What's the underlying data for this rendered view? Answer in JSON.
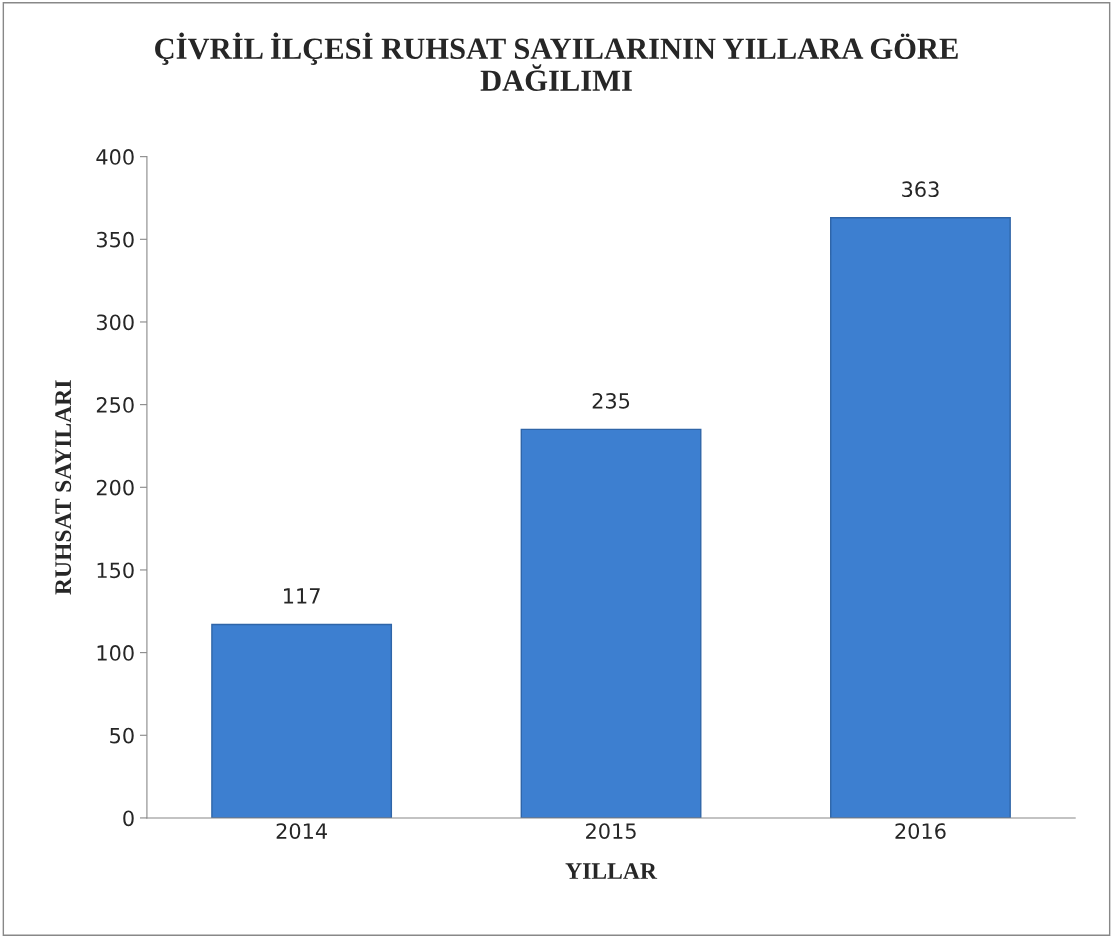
{
  "chart_data": {
    "type": "bar",
    "title": "ÇİVRİL İLÇESİ RUHSAT SAYILARININ YILLARA GÖRE\nDAĞILIMI",
    "xlabel": "YILLAR",
    "ylabel": "RUHSAT SAYILARI",
    "categories": [
      "2014",
      "2015",
      "2016"
    ],
    "values": [
      117,
      235,
      363
    ],
    "color": "#3d7fd0",
    "ylim": [
      0,
      400
    ],
    "yticks": [
      0,
      50,
      100,
      150,
      200,
      250,
      300,
      350,
      400
    ],
    "data_labels": true
  }
}
